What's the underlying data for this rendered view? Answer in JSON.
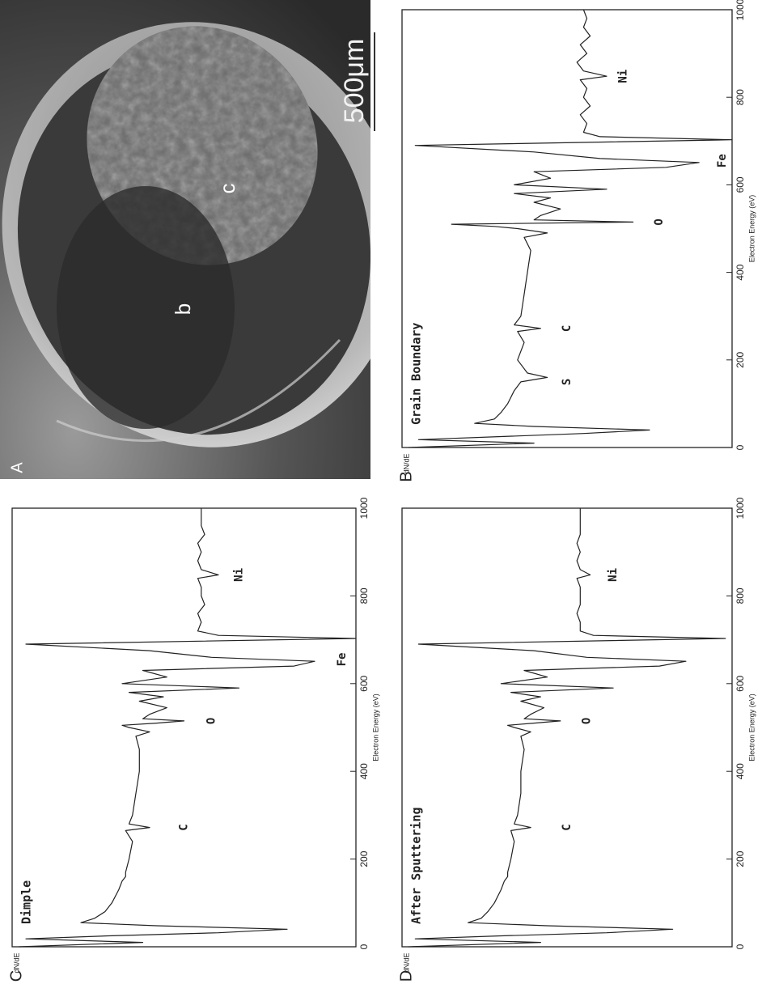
{
  "panel_a": {
    "label": "A",
    "annotations": [
      "b",
      "c"
    ],
    "scale_bar": "500μm"
  },
  "chart_data": [
    {
      "type": "line",
      "panel_label": "B",
      "title": "Grain Boundary",
      "xlabel": "Electron Energy (eV)",
      "ylabel": "dN/dE",
      "xlim": [
        0,
        1000
      ],
      "xticks": [
        0,
        200,
        400,
        600,
        800,
        1000
      ],
      "ylim": [
        0,
        100
      ],
      "color": "#222",
      "annotations": [
        "S",
        "C",
        "O",
        "Fe",
        "Ni"
      ],
      "x": [
        0,
        10,
        18,
        25,
        32,
        40,
        48,
        55,
        65,
        80,
        100,
        130,
        150,
        160,
        170,
        200,
        240,
        265,
        272,
        280,
        300,
        350,
        400,
        450,
        480,
        490,
        500,
        505,
        510,
        515,
        520,
        530,
        545,
        560,
        570,
        580,
        590,
        600,
        615,
        630,
        640,
        651,
        660,
        675,
        690,
        703,
        710,
        720,
        740,
        760,
        780,
        800,
        820,
        840,
        848,
        860,
        880,
        900,
        920,
        940,
        960,
        980,
        1000
      ],
      "values": [
        98,
        60,
        95,
        70,
        45,
        25,
        60,
        78,
        72,
        70,
        68,
        66,
        64,
        56,
        62,
        65,
        63,
        65,
        58,
        66,
        64,
        63,
        62,
        61,
        63,
        56,
        65,
        72,
        85,
        30,
        60,
        58,
        52,
        60,
        55,
        66,
        38,
        66,
        55,
        60,
        20,
        10,
        40,
        60,
        96,
        0,
        40,
        45,
        44,
        46,
        43,
        45,
        44,
        46,
        38,
        45,
        47,
        44,
        46,
        43,
        45,
        44,
        45
      ]
    },
    {
      "type": "line",
      "panel_label": "C",
      "title": "Dimple",
      "xlabel": "Electron Energy (eV)",
      "ylabel": "dN/dE",
      "xlim": [
        0,
        1000
      ],
      "xticks": [
        0,
        200,
        400,
        600,
        800,
        1000
      ],
      "ylim": [
        0,
        100
      ],
      "color": "#222",
      "annotations": [
        "C",
        "O",
        "Fe",
        "Ni"
      ],
      "x": [
        0,
        10,
        18,
        25,
        32,
        40,
        48,
        55,
        65,
        80,
        100,
        130,
        150,
        160,
        170,
        200,
        240,
        265,
        272,
        280,
        300,
        350,
        400,
        450,
        480,
        490,
        500,
        505,
        510,
        515,
        520,
        530,
        545,
        560,
        570,
        580,
        590,
        600,
        615,
        630,
        640,
        651,
        660,
        675,
        690,
        703,
        710,
        720,
        740,
        760,
        780,
        800,
        820,
        840,
        848,
        860,
        880,
        900,
        920,
        940,
        960,
        980,
        1000
      ],
      "values": [
        98,
        62,
        96,
        72,
        40,
        20,
        58,
        80,
        76,
        73,
        71,
        69,
        68,
        67,
        67,
        66,
        65,
        67,
        60,
        66,
        65,
        64,
        63,
        63,
        64,
        60,
        66,
        68,
        58,
        50,
        62,
        60,
        55,
        63,
        56,
        66,
        34,
        68,
        55,
        62,
        18,
        12,
        42,
        60,
        96,
        0,
        40,
        46,
        45,
        46,
        44,
        45,
        45,
        46,
        40,
        45,
        46,
        45,
        46,
        44,
        45,
        45,
        45
      ]
    },
    {
      "type": "line",
      "panel_label": "D",
      "title": "After Sputtering",
      "xlabel": "Electron Energy (eV)",
      "ylabel": "dN/dE",
      "xlim": [
        0,
        1000
      ],
      "xticks": [
        0,
        200,
        400,
        600,
        800,
        1000
      ],
      "ylim": [
        0,
        100
      ],
      "color": "#222",
      "annotations": [
        "C",
        "O",
        "Ni"
      ],
      "x": [
        0,
        10,
        18,
        25,
        32,
        40,
        48,
        55,
        65,
        80,
        100,
        130,
        150,
        160,
        170,
        200,
        240,
        265,
        272,
        280,
        300,
        350,
        400,
        450,
        480,
        490,
        500,
        505,
        510,
        515,
        520,
        530,
        545,
        560,
        570,
        580,
        590,
        600,
        615,
        630,
        640,
        651,
        660,
        675,
        690,
        703,
        710,
        720,
        740,
        760,
        780,
        800,
        820,
        840,
        848,
        860,
        880,
        900,
        920,
        940,
        960,
        980,
        1000
      ],
      "values": [
        98,
        58,
        96,
        70,
        38,
        18,
        56,
        80,
        76,
        74,
        72,
        70,
        69,
        68,
        68,
        67,
        66,
        67,
        61,
        66,
        65,
        64,
        64,
        63,
        64,
        61,
        66,
        68,
        60,
        52,
        63,
        61,
        57,
        64,
        58,
        67,
        36,
        70,
        56,
        63,
        22,
        14,
        44,
        60,
        95,
        2,
        42,
        46,
        46,
        47,
        46,
        46,
        46,
        47,
        43,
        46,
        47,
        46,
        47,
        46,
        46,
        46,
        46
      ]
    }
  ]
}
